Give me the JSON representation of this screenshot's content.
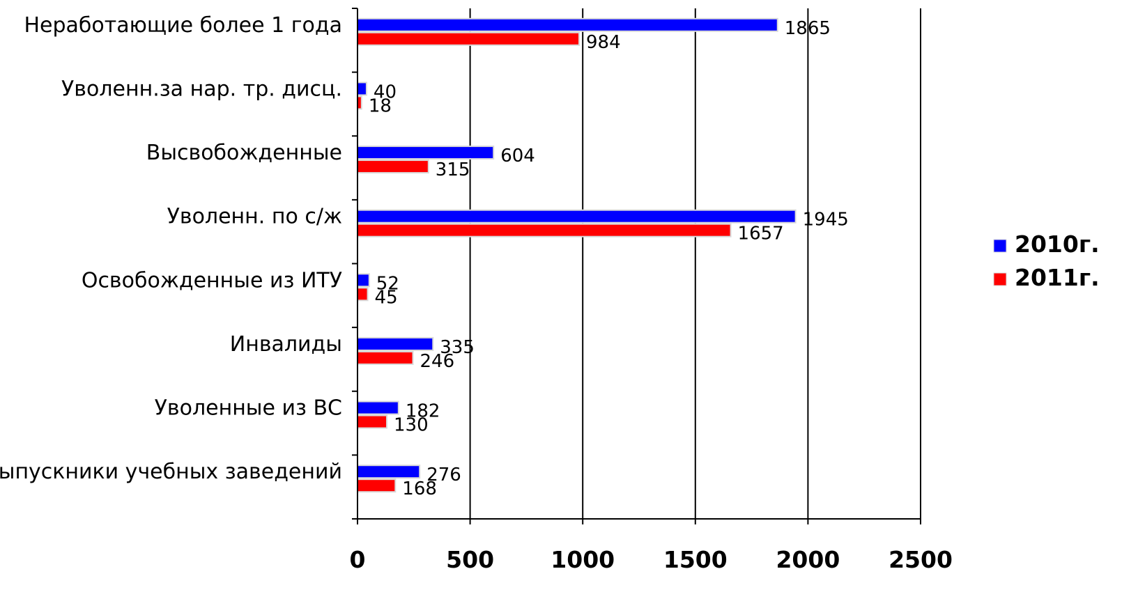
{
  "chart_data": {
    "type": "bar",
    "orientation": "horizontal",
    "title": "",
    "xlabel": "",
    "ylabel": "",
    "xlim": [
      0,
      2500
    ],
    "xticks": [
      0,
      500,
      1000,
      1500,
      2000,
      2500
    ],
    "grid": "vertical major gridlines",
    "legend_position": "right",
    "categories": [
      "Неработающие более 1 года",
      "Уволенн.за нар. тр. дисц.",
      "Высвобожденные",
      "Уволенн. по с/ж",
      "Освобожденные из ИТУ",
      "Инвалиды",
      "Уволенные из ВС",
      "Выпускники учебных заведений"
    ],
    "series": [
      {
        "name": "2010г.",
        "color": "#0000ff",
        "values": [
          1865,
          40,
          604,
          1945,
          52,
          335,
          182,
          276
        ]
      },
      {
        "name": "2011г.",
        "color": "#ff0000",
        "values": [
          984,
          18,
          315,
          1657,
          45,
          246,
          130,
          168
        ]
      }
    ]
  }
}
